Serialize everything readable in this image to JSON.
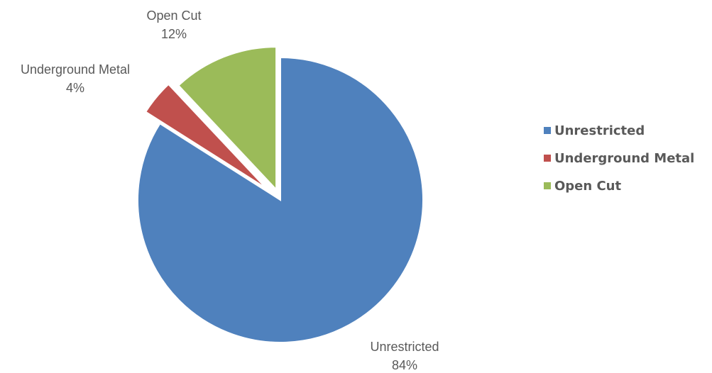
{
  "chart_data": {
    "type": "pie",
    "categories": [
      "Unrestricted",
      "Underground Metal",
      "Open Cut"
    ],
    "values": [
      84,
      4,
      12
    ],
    "colors": [
      "#4f81bd",
      "#c0504d",
      "#9bbb59"
    ],
    "data_labels": [
      {
        "name": "Unrestricted",
        "value": "84%"
      },
      {
        "name": "Underground Metal",
        "value": "4%"
      },
      {
        "name": "Open Cut",
        "value": "12%"
      }
    ],
    "legend": {
      "position": "right",
      "entries": [
        "Unrestricted",
        "Underground Metal",
        "Open Cut"
      ]
    },
    "exploded": true
  }
}
